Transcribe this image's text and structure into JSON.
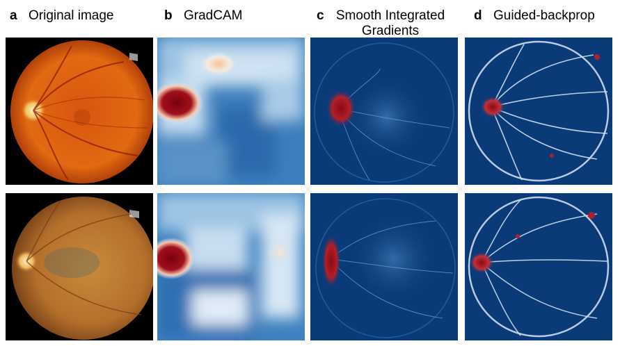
{
  "columns": [
    {
      "letter": "a",
      "title": "Original image"
    },
    {
      "letter": "b",
      "title": "GradCAM"
    },
    {
      "letter": "c",
      "title_line1": "Smooth Integrated",
      "title_line2": "Gradients"
    },
    {
      "letter": "d",
      "title": "Guided-backprop"
    }
  ],
  "colors": {
    "heat_bg": "#0b3a78",
    "heat_light": "#d8e8f5",
    "heat_hot": "#8b0a14",
    "fundus": "#d8540f",
    "fundus2": "#b56f2c"
  }
}
